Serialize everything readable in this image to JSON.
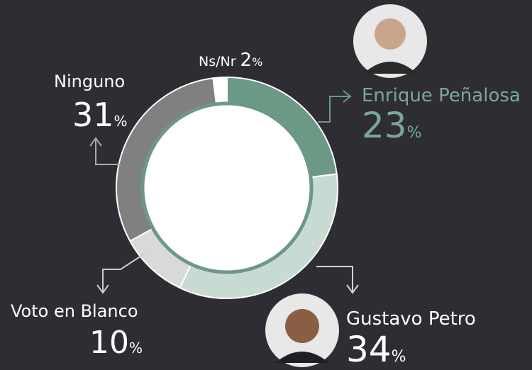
{
  "chart_data": {
    "type": "donut",
    "categories": [
      "Enrique Peñalosa",
      "Gustavo Petro",
      "Voto en Blanco",
      "Ninguno",
      "Ns/Nr"
    ],
    "values": [
      23,
      34,
      10,
      31,
      2
    ],
    "unit": "%",
    "colors": [
      "#6b9985",
      "#c7dbd3",
      "#d9d9d9",
      "#808080",
      "#ffffff"
    ]
  }
}
